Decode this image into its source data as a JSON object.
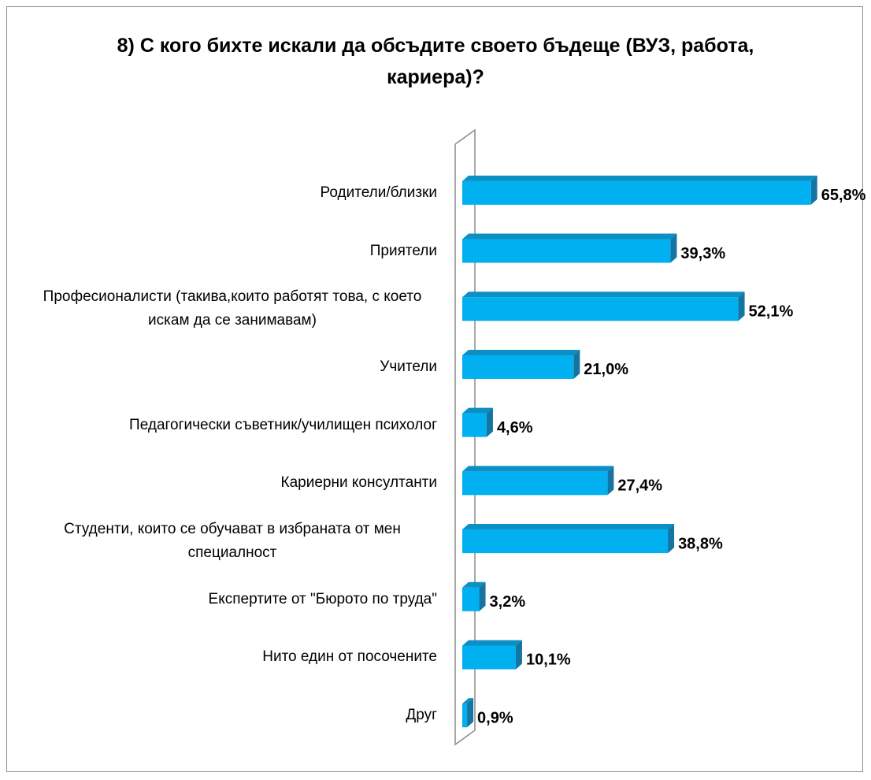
{
  "chart_data": {
    "type": "bar",
    "orientation": "horizontal",
    "title": "8) С кого бихте искали да обсъдите своето бъдеще (ВУЗ, работа, кариера)?",
    "categories": [
      "Родители/близки",
      "Приятели",
      "Професионалисти (такива,които работят това, с което искам да се занимавам)",
      "Учители",
      "Педагогически съветник/училищен психолог",
      "Кариерни консултанти",
      "Студенти, които се обучават в избраната от мен специалност",
      "Експертите от \"Бюрото по труда\"",
      "Нито един от посочените",
      "Друг"
    ],
    "values": [
      65.8,
      39.3,
      52.1,
      21.0,
      4.6,
      27.4,
      38.8,
      3.2,
      10.1,
      0.9
    ],
    "value_labels": [
      "65,8%",
      "39,3%",
      "52,1%",
      "21,0%",
      "4,6%",
      "27,4%",
      "38,8%",
      "3,2%",
      "10,1%",
      "0,9%"
    ],
    "color": "#00b0f0",
    "xlim": [
      0,
      70
    ]
  }
}
